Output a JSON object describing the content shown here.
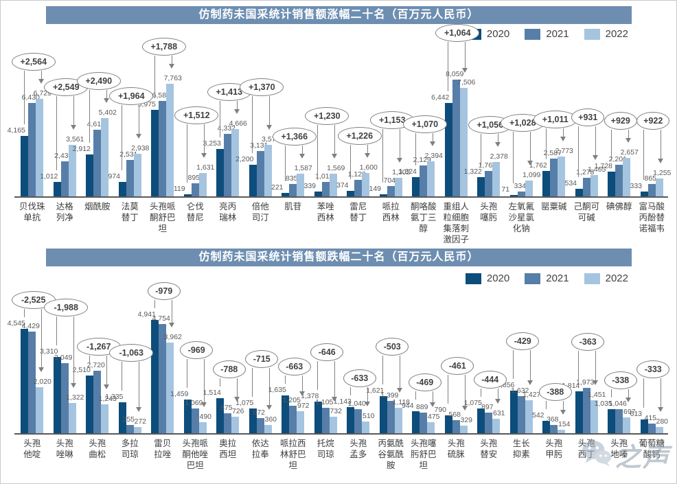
{
  "colors": {
    "series": [
      "#0c4d7c",
      "#567ea8",
      "#a5c4e0"
    ],
    "title_band": "#6d8eb1",
    "value_label": "#595959",
    "bubble_border": "#7f7f7f",
    "bubble_text": "#3f3f3f",
    "axis_line": "#595959"
  },
  "chart_data": [
    {
      "type": "bar",
      "title": "仿制药未国采统计销售额涨幅二十名（百万元人民币）",
      "legend_position": "top-right",
      "grid": false,
      "ylim": [
        0,
        8500
      ],
      "categories": [
        "贝伐珠单抗",
        "达格列净",
        "烟酰胺",
        "法莫替丁",
        "头孢哌酮舒巴坦",
        "仑伐替尼",
        "亮丙瑞林",
        "倍他司汀",
        "肌苷",
        "苯唑西林",
        "雷尼替丁",
        "哌拉西林",
        "酮咯酸氨丁三醇",
        "重组人粒细胞集落刺激因子",
        "头孢噻肟",
        "左氧氟沙星氯化钠",
        "罂粟碱",
        "己酮可可碱",
        "碘佛醇",
        "富马酸丙酚替诺福韦"
      ],
      "series": [
        {
          "name": "2020",
          "values": [
            4165,
            1012,
            2912,
            974,
            5975,
            119,
            3253,
            2200,
            221,
            339,
            374,
            149,
            1324,
            6442,
            1322,
            71,
            1762,
            534,
            1728,
            333
          ]
        },
        {
          "name": "2021",
          "values": [
            6430,
            2438,
            4610,
            2531,
            6584,
            895,
            4332,
            3131,
            835,
            1015,
            1120,
            704,
            2129,
            8059,
            1769,
            334,
            2587,
            1278,
            2201,
            865
          ]
        },
        {
          "name": "2022",
          "values": [
            6729,
            3561,
            5402,
            2938,
            7763,
            1631,
            4666,
            3570,
            1587,
            1569,
            1600,
            1302,
            2394,
            7506,
            2378,
            1099,
            2773,
            1465,
            2657,
            1255
          ]
        }
      ],
      "deltas": [
        "+2,564",
        "+2,549",
        "+2,490",
        "+1,964",
        "+1,788",
        "+1,512",
        "+1,413",
        "+1,370",
        "+1,366",
        "+1,230",
        "+1,226",
        "+1,153",
        "+1,070",
        "+1,064",
        "+1,056",
        "+1,028",
        "+1,011",
        "+931",
        "+929",
        "+922"
      ]
    },
    {
      "type": "bar",
      "title": "仿制药未国采统计销售额跌幅二十名（百万元人民币）",
      "legend_position": "top-right",
      "grid": false,
      "ylim": [
        0,
        5200
      ],
      "categories": [
        "头孢他啶",
        "头孢唑啉",
        "头孢曲松",
        "多拉司琼",
        "雷贝拉唑",
        "头孢哌酮他唑巴坦",
        "奥拉西坦",
        "依达拉奉",
        "哌拉西林舒巴坦",
        "托烷司琼",
        "头孢孟多",
        "丙氨酰谷氨酰胺",
        "头孢噻肟舒巴坦",
        "头孢硫脒",
        "头孢替安",
        "生长抑素",
        "头孢甲肟",
        "头孢西丁",
        "头孢地嗪",
        "葡萄糖酸钙"
      ],
      "series": [
        {
          "name": "2020",
          "values": [
            4545,
            3310,
            2510,
            1335,
            4941,
            1459,
            1514,
            1075,
            1635,
            1378,
            1143,
            1621,
            944,
            790,
            1075,
            1856,
            542,
            1814,
            1035,
            613
          ]
        },
        {
          "name": "2021",
          "values": [
            4429,
            3049,
            2720,
            355,
            4754,
            1069,
            875,
            672,
            1205,
            1105,
            1040,
            1399,
            889,
            568,
            897,
            1632,
            368,
            1973,
            1046,
            415
          ]
        },
        {
          "name": "2022",
          "values": [
            2020,
            1322,
            1243,
            272,
            3962,
            490,
            726,
            360,
            972,
            732,
            510,
            1118,
            475,
            329,
            631,
            1427,
            154,
            1451,
            697,
            280
          ]
        }
      ],
      "deltas": [
        "-2,525",
        "-1,988",
        "-1,267",
        "-1,063",
        "-979",
        "-969",
        "-788",
        "-715",
        "-663",
        "-646",
        "-633",
        "-503",
        "-469",
        "-461",
        "-444",
        "-429",
        "-388",
        "-363",
        "-338",
        "-333"
      ]
    }
  ],
  "watermark": {
    "icon": "wechat-icon",
    "text": "之声"
  }
}
